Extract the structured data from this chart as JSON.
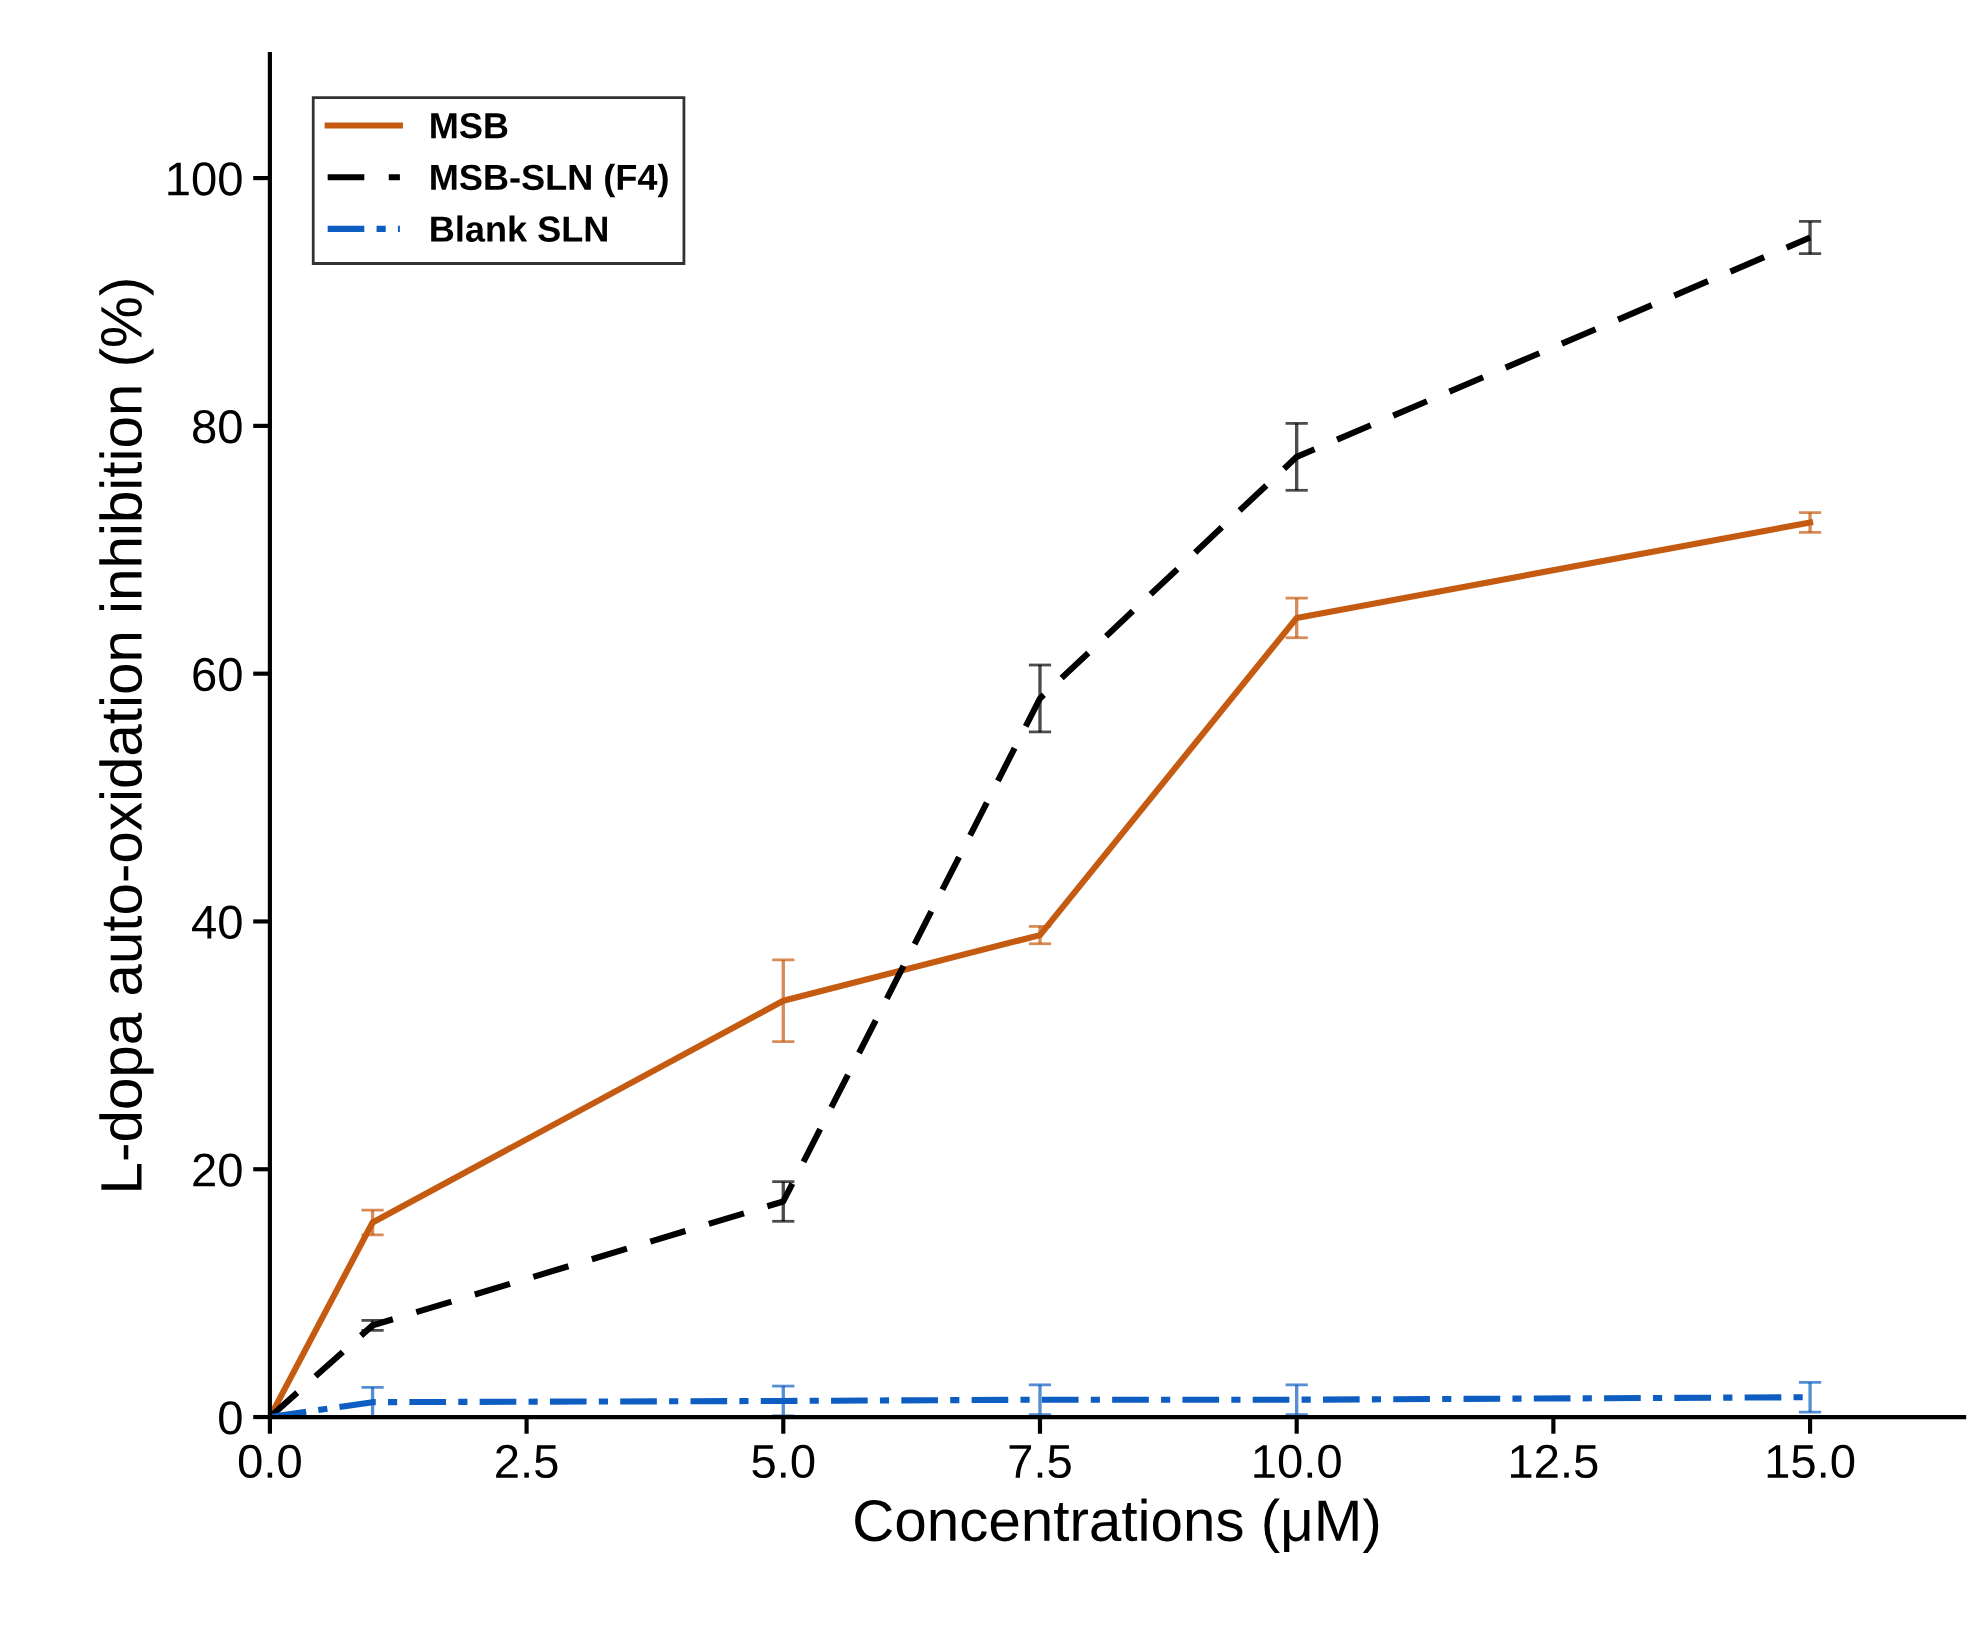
{
  "chart_data": {
    "type": "line",
    "xlabel": "Concentrations (μM)",
    "ylabel": "L-dopa auto-oxidation inhibition (%)",
    "xlim": [
      0,
      16.5
    ],
    "ylim": [
      0,
      110
    ],
    "xticks": [
      {
        "value": 0,
        "label": "0.0"
      },
      2.5,
      {
        "value": 5,
        "label": "5.0"
      },
      7.5,
      {
        "value": 10,
        "label": "10.0"
      },
      12.5,
      {
        "value": 15,
        "label": "15.0"
      }
    ],
    "yticks": [
      0,
      20,
      40,
      60,
      80,
      100
    ],
    "grid": false,
    "legend": "top left",
    "marker": "none",
    "series": [
      {
        "name": "MSB",
        "color": "#c55a11",
        "line_style": "solid",
        "x": [
          0,
          1,
          5,
          7.5,
          10,
          15
        ],
        "values": [
          0,
          15.7,
          33.6,
          38.9,
          64.5,
          72.2
        ],
        "errors": [
          null,
          1.0,
          3.3,
          0.7,
          1.6,
          0.8
        ]
      },
      {
        "name": "MSB-SLN (F4)",
        "color": "#000000",
        "line_style": "dashed",
        "x": [
          0,
          1,
          5,
          7.5,
          10,
          15
        ],
        "values": [
          0,
          7.4,
          17.4,
          58.0,
          77.5,
          95.2
        ],
        "errors": [
          null,
          0.4,
          1.6,
          2.7,
          2.7,
          1.3
        ]
      },
      {
        "name": "Blank SLN",
        "color": "#0e5ec2",
        "line_style": "dashdot",
        "x": [
          0,
          1,
          5,
          7.5,
          10,
          15
        ],
        "values": [
          0,
          1.2,
          1.3,
          1.4,
          1.4,
          1.6
        ],
        "errors": [
          null,
          1.2,
          1.2,
          1.2,
          1.2,
          1.2
        ]
      }
    ]
  }
}
